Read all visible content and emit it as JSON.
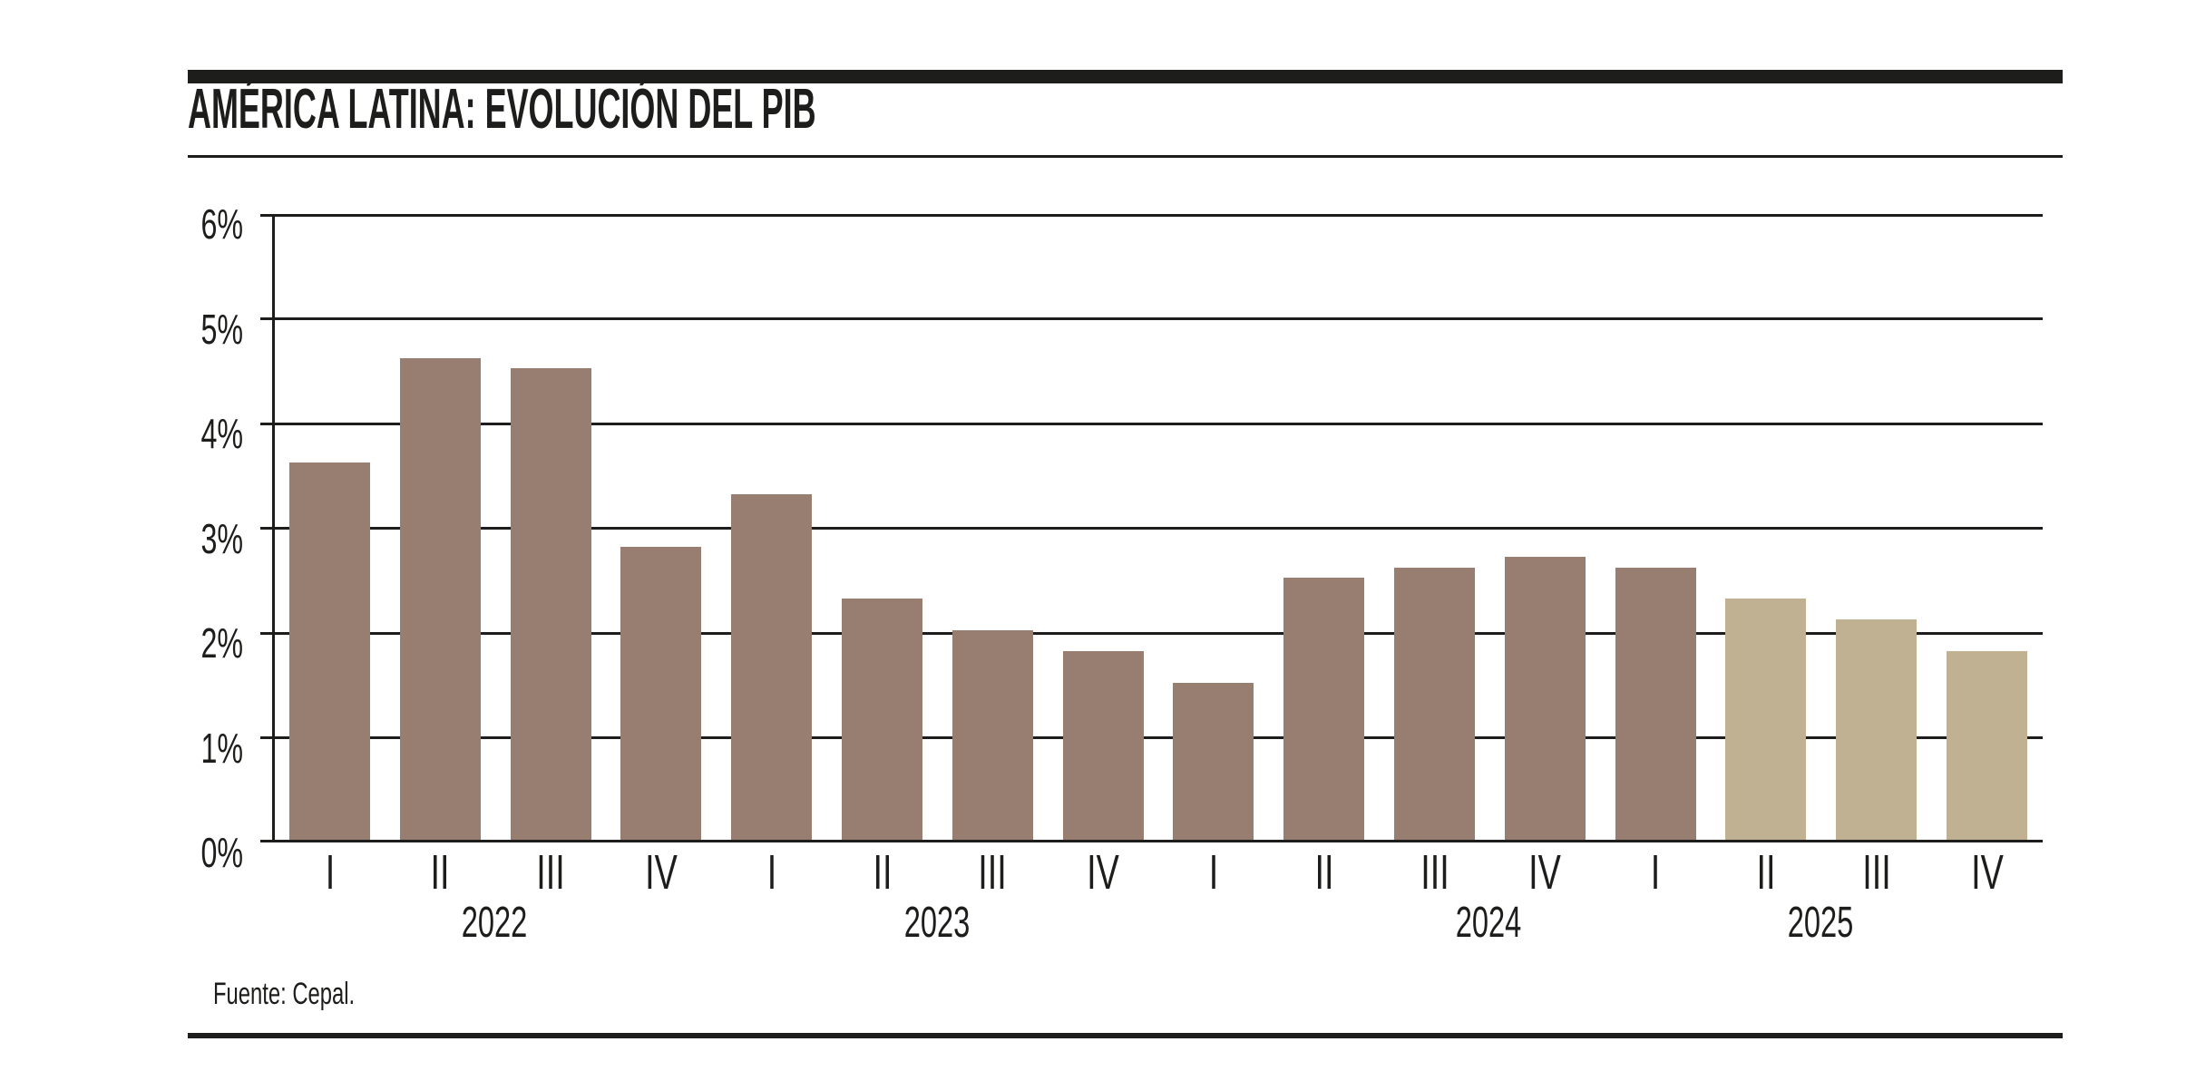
{
  "page": {
    "title": "AMÉRICA LATINA: EVOLUCIÓN DEL PIB",
    "source": "Fuente: Cepal."
  },
  "colors": {
    "ink": "#1D1D1B",
    "bar": "#977E71",
    "bar_projected": "#BFB191",
    "background": "#FFFFFF"
  },
  "chart_data": {
    "type": "bar",
    "title": "AMÉRICA LATINA: EVOLUCIÓN DEL PIB",
    "source": "Fuente: Cepal.",
    "unit": "percent",
    "ylim": [
      0,
      6
    ],
    "grid": true,
    "legend_position": "none",
    "yticks": [
      {
        "value": 6,
        "label": "6%"
      },
      {
        "value": 5,
        "label": "5%"
      },
      {
        "value": 4,
        "label": "4%"
      },
      {
        "value": 3,
        "label": "3%"
      },
      {
        "value": 2,
        "label": "2%"
      },
      {
        "value": 1,
        "label": "1%"
      },
      {
        "value": 0,
        "label": "0%"
      }
    ],
    "years": [
      {
        "year": "2022",
        "quarters": [
          {
            "label": "I",
            "value": 3.6,
            "projected": false
          },
          {
            "label": "II",
            "value": 4.6,
            "projected": false
          },
          {
            "label": "III",
            "value": 4.5,
            "projected": false
          },
          {
            "label": "IV",
            "value": 2.8,
            "projected": false
          }
        ]
      },
      {
        "year": "2023",
        "quarters": [
          {
            "label": "I",
            "value": 3.3,
            "projected": false
          },
          {
            "label": "II",
            "value": 2.3,
            "projected": false
          },
          {
            "label": "III",
            "value": 2.0,
            "projected": false
          },
          {
            "label": "IV",
            "value": 1.8,
            "projected": false
          }
        ]
      },
      {
        "year": "2024",
        "quarters": [
          {
            "label": "I",
            "value": 1.5,
            "projected": false
          },
          {
            "label": "II",
            "value": 2.5,
            "projected": false
          },
          {
            "label": "III",
            "value": 2.6,
            "projected": false
          },
          {
            "label": "IV",
            "value": 2.7,
            "projected": false
          }
        ]
      },
      {
        "year": "2025",
        "quarters": [
          {
            "label": "I",
            "value": 2.6,
            "projected": false
          },
          {
            "label": "II",
            "value": 2.3,
            "projected": true
          },
          {
            "label": "III",
            "value": 2.1,
            "projected": true
          },
          {
            "label": "IV",
            "value": 1.8,
            "projected": true
          }
        ]
      }
    ]
  }
}
